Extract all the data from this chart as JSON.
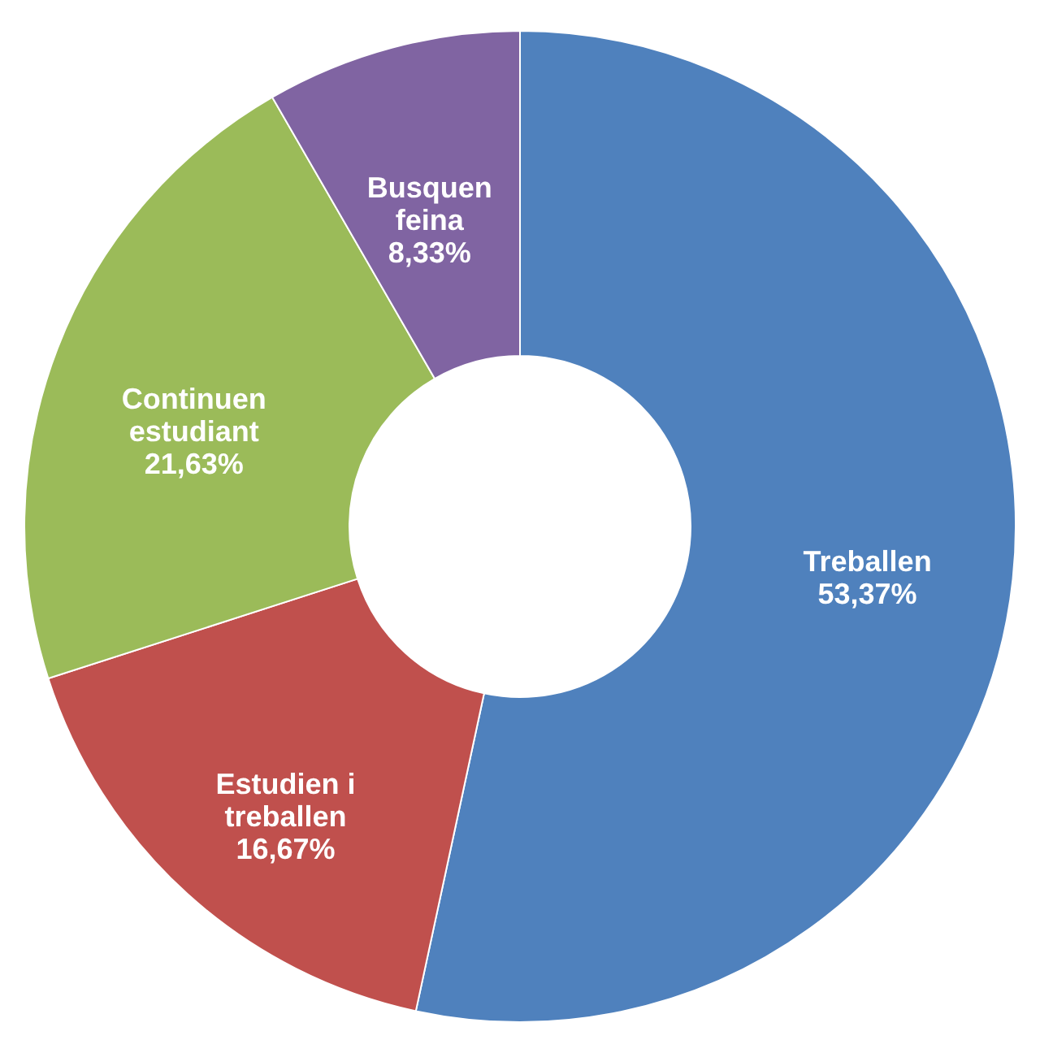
{
  "chart_data": {
    "type": "donut",
    "categories": [
      "Treballen",
      "Estudien i treballen",
      "Continuen estudiant",
      "Busquen feina"
    ],
    "values": [
      53.37,
      16.67,
      21.63,
      8.33
    ],
    "value_labels": [
      "53,37%",
      "16,67%",
      "21,63%",
      "8,33%"
    ],
    "colors": [
      "#4f81bd",
      "#c0504d",
      "#9bbb59",
      "#8064a2"
    ],
    "legend": false
  }
}
